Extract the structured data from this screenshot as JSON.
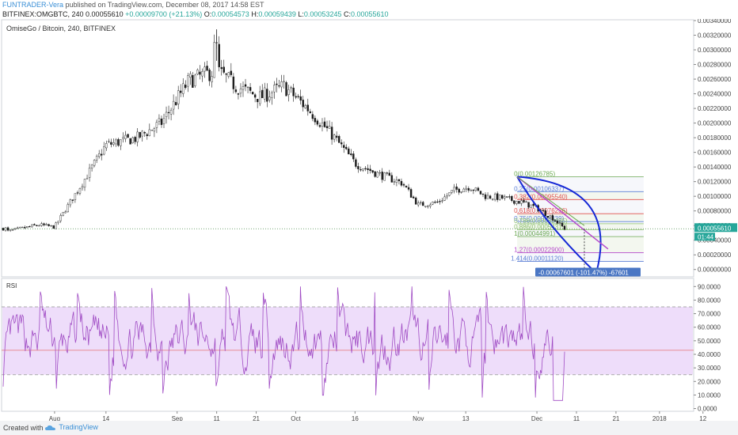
{
  "header": {
    "author": "FUNTRADER-Vera",
    "published": " published on TradingView.com, December 08, 2017 14:58 EST",
    "symbol": "BITFINEX:OMGBTC, 240",
    "last": "0.00055610",
    "change": "+0.00009700 (+21.13%)",
    "open_label": "O:",
    "open": "0.00054573",
    "high_label": "H:",
    "high": "0.00059439",
    "low_label": "L:",
    "low": "0.00053245",
    "close_label": "C:",
    "close": "0.00055610"
  },
  "footer": {
    "created": "Created with",
    "logo": "TradingView"
  },
  "colors": {
    "up": "#26a69a",
    "down": "#ef5350",
    "candle": "#1b1b1b",
    "rsi": "#a04cc4",
    "rsi_band": "#eeddfa",
    "red_line": "#e57373",
    "drawing": "#1528d6",
    "label_bg": "#4a76c4"
  },
  "chart_data": [
    {
      "type": "candlestick",
      "title": "OmiseGo / Bitcoin, 240, BITFINEX",
      "ylim": [
        -0.0001,
        0.0034
      ],
      "y_ticks": [
        "0.00340000",
        "0.00320000",
        "0.00300000",
        "0.00280000",
        "0.00260000",
        "0.00240000",
        "0.00220000",
        "0.00200000",
        "0.00180000",
        "0.00160000",
        "0.00140000",
        "0.00120000",
        "0.00100000",
        "0.00080000",
        "0.00060000",
        "0.00040000",
        "0.00020000",
        "0.00000000"
      ],
      "x_ticks": [
        "Aug",
        "14",
        "Sep",
        "11",
        "21",
        "Oct",
        "16",
        "Nov",
        "13",
        "Dec",
        "11",
        "21",
        "2018",
        "12"
      ],
      "price_trend": {
        "x": [
          "Jul 20",
          "Jul 28",
          "Aug 1",
          "Aug 8",
          "Aug 14",
          "Aug 22",
          "Aug 28",
          "Sep 4",
          "Sep 11",
          "Sep 16",
          "Sep 22",
          "Sep 28",
          "Oct 4",
          "Oct 10",
          "Oct 16",
          "Oct 22",
          "Oct 28",
          "Nov 1",
          "Nov 6",
          "Nov 10",
          "Nov 14",
          "Nov 18",
          "Nov 22",
          "Nov 27",
          "Dec 1",
          "Dec 5",
          "Dec 8"
        ],
        "y": [
          0.00052,
          0.00061,
          0.00058,
          0.00118,
          0.0017,
          0.0018,
          0.002,
          0.00258,
          0.00272,
          0.0025,
          0.00235,
          0.0025,
          0.0022,
          0.00185,
          0.00145,
          0.0013,
          0.00118,
          0.00088,
          0.00092,
          0.00108,
          0.00113,
          0.001,
          0.00098,
          0.00092,
          0.00084,
          0.0007,
          0.00056
        ]
      },
      "high_point": {
        "x": "Sep 11",
        "y": 0.00328
      },
      "last_price": {
        "label": "0.00055610",
        "timer": "01:44",
        "value": 0.0005561
      },
      "fib_levels": [
        {
          "ratio": "0",
          "label": "0(0.00126785)",
          "value": 0.00126785,
          "color": "#6aa84f"
        },
        {
          "ratio": "0.25",
          "label": "0.25(0.00106337)",
          "value": 0.00106337,
          "color": "#5b7fd6"
        },
        {
          "ratio": "0.382",
          "label": "0.382(0.00095540)",
          "value": 0.0009554,
          "color": "#e0504c"
        },
        {
          "ratio": "0.618",
          "label": "0.618(0.00076236)",
          "value": 0.00076236,
          "color": "#e0504c"
        },
        {
          "ratio": "0.75",
          "label": "0.75(0.00065439)",
          "value": 0.00065439,
          "color": "#5b7fd6"
        },
        {
          "ratio": "0.786",
          "label": "0.786(0.00062495)",
          "value": 0.00062495,
          "color": "#8bbf6a"
        },
        {
          "ratio": "0.886",
          "label": "0.886(0.00054315)",
          "value": 0.00054315,
          "color": "#8bbf6a"
        },
        {
          "ratio": "1",
          "label": "1(0.00044991)",
          "value": 0.00044991,
          "color": "#6aa84f"
        },
        {
          "ratio": "1.27",
          "label": "1.27(0.00022900)",
          "value": 0.000229,
          "color": "#b64ccc"
        },
        {
          "ratio": "1.414",
          "label": "1.414(0.00011120)",
          "value": 0.0001112,
          "color": "#5b7fd6"
        }
      ],
      "measure": {
        "label": "-0.00067601 (-101.47%) -67601",
        "value": -0.00067601
      }
    },
    {
      "type": "line",
      "title": "RSI",
      "ylim": [
        0,
        90
      ],
      "y_ticks": [
        "90.0000",
        "80.0000",
        "70.0000",
        "60.0000",
        "50.0000",
        "40.0000",
        "30.0000",
        "20.0000",
        "10.0000",
        "0.0000"
      ],
      "bands": [
        25,
        75
      ],
      "level_line": 43
    }
  ]
}
